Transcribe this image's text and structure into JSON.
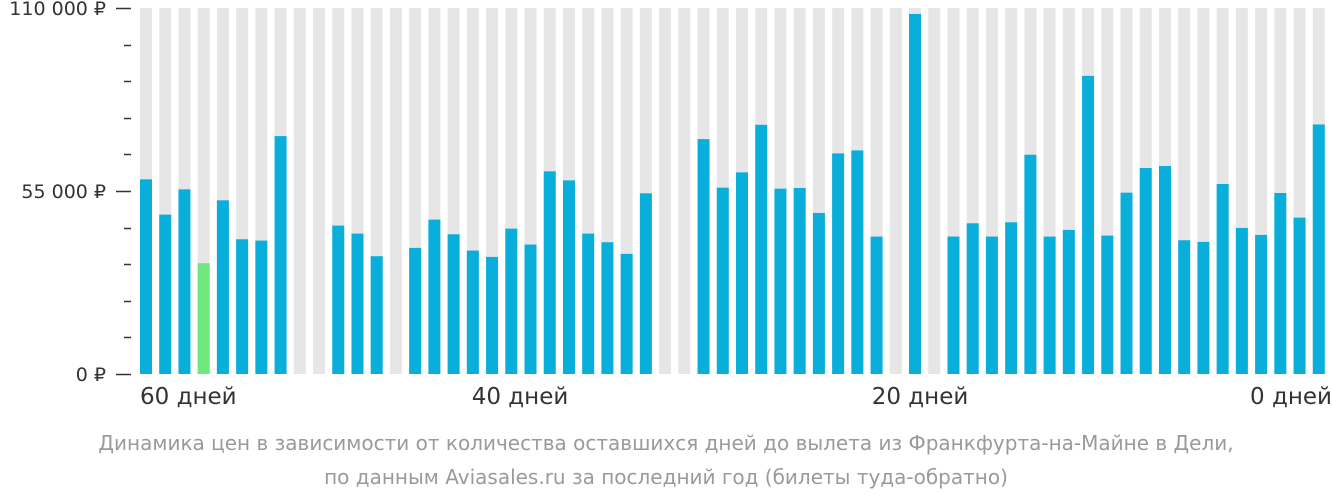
{
  "chart_data": {
    "type": "bar",
    "ylim": [
      0,
      110000
    ],
    "y_ticks": [
      "0 ₽",
      "55 000 ₽",
      "110 000 ₽"
    ],
    "x_labels": [
      "60 дней",
      "40 дней",
      "20 дней",
      "0 дней"
    ],
    "caption_line1": "Динамика цен в зависимости от количества оставшихся дней до вылета из Франкфурта-на-Майне в Дели,",
    "caption_line2": "по данным Aviasales.ru за последний год (билеты туда-обратно)",
    "colors": {
      "bar": "#0aaedb",
      "highlight": "#6ee87d",
      "background_column": "#e6e6e6",
      "axis": "#333333"
    },
    "highlight_index": 3,
    "values": [
      58500,
      47900,
      55500,
      33300,
      52200,
      40500,
      40100,
      71500,
      null,
      null,
      44600,
      42200,
      35400,
      null,
      37900,
      46400,
      42000,
      37100,
      35200,
      43700,
      38900,
      60900,
      58200,
      42200,
      39600,
      36100,
      54300,
      null,
      null,
      70600,
      56000,
      60600,
      74900,
      55700,
      55900,
      48400,
      66300,
      67200,
      41300,
      null,
      108200,
      null,
      41300,
      45300,
      41300,
      45600,
      65900,
      41300,
      43300,
      89600,
      41600,
      54500,
      61900,
      62500,
      40200,
      39700,
      57100,
      43900,
      41800,
      54400,
      47000,
      75000
    ]
  }
}
